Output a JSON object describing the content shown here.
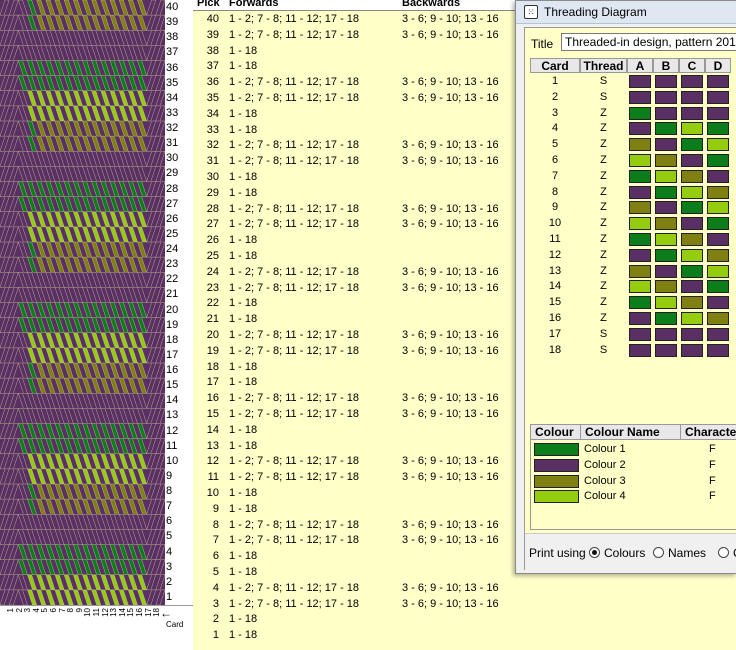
{
  "colors": {
    "colour1": "#0b7d1b",
    "colour2": "#5a2f63",
    "colour3": "#7f7f12",
    "colour4": "#96cc10"
  },
  "weave": {
    "row_labels": [
      "40",
      "39",
      "38",
      "37",
      "36",
      "35",
      "34",
      "33",
      "32",
      "31",
      "30",
      "29",
      "28",
      "27",
      "26",
      "25",
      "24",
      "23",
      "22",
      "21",
      "20",
      "19",
      "18",
      "17",
      "16",
      "15",
      "14",
      "13",
      "12",
      "11",
      "10",
      "9",
      "8",
      "7",
      "6",
      "5",
      "4",
      "3",
      "2",
      "1"
    ],
    "card_labels": [
      "1",
      "2",
      "3",
      "4",
      "5",
      "6",
      "7",
      "8",
      "9",
      "10",
      "11",
      "12",
      "13",
      "14",
      "15",
      "16",
      "17",
      "18"
    ],
    "card_axis_label": "Card",
    "arrow": "←"
  },
  "pick_table": {
    "headers": {
      "pick": "Pick",
      "forwards": "Forwards",
      "backwards": "Backwards"
    },
    "rows": [
      {
        "pick": "40",
        "fwd": "1 - 2; 7 - 8; 11 - 12; 17 - 18",
        "bwd": "3 - 6; 9 - 10; 13 - 16"
      },
      {
        "pick": "39",
        "fwd": "1 - 2; 7 - 8; 11 - 12; 17 - 18",
        "bwd": "3 - 6; 9 - 10; 13 - 16"
      },
      {
        "pick": "38",
        "fwd": "1 - 18",
        "bwd": ""
      },
      {
        "pick": "37",
        "fwd": "1 - 18",
        "bwd": ""
      },
      {
        "pick": "36",
        "fwd": "1 - 2; 7 - 8; 11 - 12; 17 - 18",
        "bwd": "3 - 6; 9 - 10; 13 - 16"
      },
      {
        "pick": "35",
        "fwd": "1 - 2; 7 - 8; 11 - 12; 17 - 18",
        "bwd": "3 - 6; 9 - 10; 13 - 16"
      },
      {
        "pick": "34",
        "fwd": "1 - 18",
        "bwd": ""
      },
      {
        "pick": "33",
        "fwd": "1 - 18",
        "bwd": ""
      },
      {
        "pick": "32",
        "fwd": "1 - 2; 7 - 8; 11 - 12; 17 - 18",
        "bwd": "3 - 6; 9 - 10; 13 - 16"
      },
      {
        "pick": "31",
        "fwd": "1 - 2; 7 - 8; 11 - 12; 17 - 18",
        "bwd": "3 - 6; 9 - 10; 13 - 16"
      },
      {
        "pick": "30",
        "fwd": "1 - 18",
        "bwd": ""
      },
      {
        "pick": "29",
        "fwd": "1 - 18",
        "bwd": ""
      },
      {
        "pick": "28",
        "fwd": "1 - 2; 7 - 8; 11 - 12; 17 - 18",
        "bwd": "3 - 6; 9 - 10; 13 - 16"
      },
      {
        "pick": "27",
        "fwd": "1 - 2; 7 - 8; 11 - 12; 17 - 18",
        "bwd": "3 - 6; 9 - 10; 13 - 16"
      },
      {
        "pick": "26",
        "fwd": "1 - 18",
        "bwd": ""
      },
      {
        "pick": "25",
        "fwd": "1 - 18",
        "bwd": ""
      },
      {
        "pick": "24",
        "fwd": "1 - 2; 7 - 8; 11 - 12; 17 - 18",
        "bwd": "3 - 6; 9 - 10; 13 - 16"
      },
      {
        "pick": "23",
        "fwd": "1 - 2; 7 - 8; 11 - 12; 17 - 18",
        "bwd": "3 - 6; 9 - 10; 13 - 16"
      },
      {
        "pick": "22",
        "fwd": "1 - 18",
        "bwd": ""
      },
      {
        "pick": "21",
        "fwd": "1 - 18",
        "bwd": ""
      },
      {
        "pick": "20",
        "fwd": "1 - 2; 7 - 8; 11 - 12; 17 - 18",
        "bwd": "3 - 6; 9 - 10; 13 - 16"
      },
      {
        "pick": "19",
        "fwd": "1 - 2; 7 - 8; 11 - 12; 17 - 18",
        "bwd": "3 - 6; 9 - 10; 13 - 16"
      },
      {
        "pick": "18",
        "fwd": "1 - 18",
        "bwd": ""
      },
      {
        "pick": "17",
        "fwd": "1 - 18",
        "bwd": ""
      },
      {
        "pick": "16",
        "fwd": "1 - 2; 7 - 8; 11 - 12; 17 - 18",
        "bwd": "3 - 6; 9 - 10; 13 - 16"
      },
      {
        "pick": "15",
        "fwd": "1 - 2; 7 - 8; 11 - 12; 17 - 18",
        "bwd": "3 - 6; 9 - 10; 13 - 16"
      },
      {
        "pick": "14",
        "fwd": "1 - 18",
        "bwd": ""
      },
      {
        "pick": "13",
        "fwd": "1 - 18",
        "bwd": ""
      },
      {
        "pick": "12",
        "fwd": "1 - 2; 7 - 8; 11 - 12; 17 - 18",
        "bwd": "3 - 6; 9 - 10; 13 - 16"
      },
      {
        "pick": "11",
        "fwd": "1 - 2; 7 - 8; 11 - 12; 17 - 18",
        "bwd": "3 - 6; 9 - 10; 13 - 16"
      },
      {
        "pick": "10",
        "fwd": "1 - 18",
        "bwd": ""
      },
      {
        "pick": "9",
        "fwd": "1 - 18",
        "bwd": ""
      },
      {
        "pick": "8",
        "fwd": "1 - 2; 7 - 8; 11 - 12; 17 - 18",
        "bwd": "3 - 6; 9 - 10; 13 - 16"
      },
      {
        "pick": "7",
        "fwd": "1 - 2; 7 - 8; 11 - 12; 17 - 18",
        "bwd": "3 - 6; 9 - 10; 13 - 16"
      },
      {
        "pick": "6",
        "fwd": "1 - 18",
        "bwd": ""
      },
      {
        "pick": "5",
        "fwd": "1 - 18",
        "bwd": ""
      },
      {
        "pick": "4",
        "fwd": "1 - 2; 7 - 8; 11 - 12; 17 - 18",
        "bwd": "3 - 6; 9 - 10; 13 - 16"
      },
      {
        "pick": "3",
        "fwd": "1 - 2; 7 - 8; 11 - 12; 17 - 18",
        "bwd": "3 - 6; 9 - 10; 13 - 16"
      },
      {
        "pick": "2",
        "fwd": "1 - 18",
        "bwd": ""
      },
      {
        "pick": "1",
        "fwd": "1 - 18",
        "bwd": ""
      }
    ]
  },
  "dialog": {
    "title": "Threading Diagram",
    "title_label": "Title",
    "title_value": "Threaded-in design, pattern 201",
    "grid_headers": [
      "Card",
      "Thread",
      "A",
      "B",
      "C",
      "D"
    ],
    "cards": [
      {
        "card": "1",
        "thread": "S",
        "holes": [
          2,
          2,
          2,
          2
        ]
      },
      {
        "card": "2",
        "thread": "S",
        "holes": [
          2,
          2,
          2,
          2
        ]
      },
      {
        "card": "3",
        "thread": "Z",
        "holes": [
          1,
          2,
          2,
          2
        ]
      },
      {
        "card": "4",
        "thread": "Z",
        "holes": [
          2,
          1,
          4,
          1
        ]
      },
      {
        "card": "5",
        "thread": "Z",
        "holes": [
          3,
          2,
          1,
          4
        ]
      },
      {
        "card": "6",
        "thread": "Z",
        "holes": [
          4,
          3,
          2,
          1
        ]
      },
      {
        "card": "7",
        "thread": "Z",
        "holes": [
          1,
          4,
          3,
          2
        ]
      },
      {
        "card": "8",
        "thread": "Z",
        "holes": [
          2,
          1,
          4,
          3
        ]
      },
      {
        "card": "9",
        "thread": "Z",
        "holes": [
          3,
          2,
          1,
          4
        ]
      },
      {
        "card": "10",
        "thread": "Z",
        "holes": [
          4,
          3,
          2,
          1
        ]
      },
      {
        "card": "11",
        "thread": "Z",
        "holes": [
          1,
          4,
          3,
          2
        ]
      },
      {
        "card": "12",
        "thread": "Z",
        "holes": [
          2,
          1,
          4,
          3
        ]
      },
      {
        "card": "13",
        "thread": "Z",
        "holes": [
          3,
          2,
          1,
          4
        ]
      },
      {
        "card": "14",
        "thread": "Z",
        "holes": [
          4,
          3,
          2,
          1
        ]
      },
      {
        "card": "15",
        "thread": "Z",
        "holes": [
          1,
          4,
          3,
          2
        ]
      },
      {
        "card": "16",
        "thread": "Z",
        "holes": [
          2,
          1,
          4,
          3
        ]
      },
      {
        "card": "17",
        "thread": "S",
        "holes": [
          2,
          2,
          2,
          2
        ]
      },
      {
        "card": "18",
        "thread": "S",
        "holes": [
          2,
          2,
          2,
          2
        ]
      }
    ],
    "colour_headers": [
      "Colour",
      "Colour Name",
      "Character"
    ],
    "colours": [
      {
        "name": "Colour 1",
        "char": "F",
        "color": "#0b7d1b"
      },
      {
        "name": "Colour 2",
        "char": "F",
        "color": "#5a2f63"
      },
      {
        "name": "Colour 3",
        "char": "F",
        "color": "#7f7f12"
      },
      {
        "name": "Colour 4",
        "char": "F",
        "color": "#96cc10"
      }
    ],
    "print_using_label": "Print using",
    "print_options": [
      {
        "label": "Colours",
        "selected": true
      },
      {
        "label": "Names",
        "selected": false
      },
      {
        "label": "C",
        "selected": false
      }
    ]
  }
}
